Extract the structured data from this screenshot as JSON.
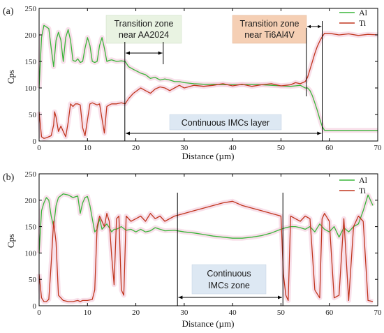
{
  "chart_data": [
    {
      "panel_label": "(a)",
      "type": "line",
      "xlabel": "Distance (µm)",
      "ylabel": "Cps",
      "xlim": [
        0,
        70
      ],
      "ylim": [
        0,
        250
      ],
      "xticks": [
        0,
        10,
        20,
        30,
        40,
        50,
        60,
        70
      ],
      "yticks": [
        0,
        50,
        100,
        150,
        200,
        250
      ],
      "grid": false,
      "legend": "top-right",
      "series": [
        {
          "name": "Al",
          "color": "#3ab53a",
          "x": [
            0,
            0.5,
            1,
            1.5,
            2,
            2.5,
            3,
            3.5,
            4,
            4.5,
            5,
            5.5,
            6,
            6.5,
            7,
            7.5,
            8,
            8.5,
            9,
            9.5,
            10,
            10.5,
            11,
            11.5,
            12,
            12.5,
            13,
            13.5,
            14,
            14.5,
            15,
            16,
            17,
            17.8,
            18.5,
            19.5,
            21,
            22,
            23,
            24,
            25,
            26,
            27,
            28,
            29,
            30,
            32,
            34,
            36,
            38,
            40,
            42,
            44,
            46,
            48,
            50,
            52,
            53,
            54,
            55,
            55.5,
            56,
            56.5,
            57,
            57.5,
            58,
            58.5,
            59,
            60,
            62,
            64,
            66,
            68,
            70
          ],
          "y": [
            100,
            195,
            218,
            215,
            212,
            175,
            140,
            190,
            205,
            190,
            150,
            195,
            210,
            190,
            152,
            150,
            155,
            148,
            150,
            175,
            195,
            180,
            150,
            148,
            150,
            180,
            195,
            175,
            150,
            152,
            153,
            150,
            151,
            150,
            140,
            135,
            128,
            125,
            118,
            120,
            115,
            117,
            115,
            112,
            112,
            110,
            108,
            107,
            107,
            106,
            106,
            106,
            107,
            106,
            105,
            104,
            103,
            104,
            105,
            100,
            100,
            95,
            85,
            72,
            58,
            42,
            28,
            20,
            20,
            20,
            20,
            20,
            20,
            20
          ]
        },
        {
          "name": "Ti",
          "color": "#c0361e",
          "x": [
            0,
            0.5,
            1,
            1.5,
            2,
            2.5,
            3,
            3.2,
            3.5,
            4,
            4.5,
            5,
            5.5,
            6,
            6.5,
            7,
            7.5,
            8,
            8.5,
            9,
            9.5,
            10,
            10.5,
            11,
            11.5,
            12,
            12.5,
            13,
            13.5,
            14,
            14.5,
            15,
            16,
            17,
            17.8,
            18.5,
            19.5,
            21,
            22,
            23,
            24,
            25,
            26,
            27,
            28,
            29,
            30,
            32,
            34,
            36,
            38,
            40,
            42,
            44,
            46,
            48,
            50,
            52,
            53,
            54,
            55,
            55.5,
            56,
            56.5,
            57,
            57.5,
            58,
            58.5,
            59,
            60,
            62,
            64,
            66,
            68,
            70
          ],
          "y": [
            55,
            8,
            5,
            6,
            8,
            10,
            30,
            55,
            45,
            18,
            28,
            18,
            8,
            35,
            70,
            65,
            70,
            70,
            68,
            25,
            10,
            40,
            70,
            72,
            70,
            68,
            70,
            42,
            15,
            65,
            68,
            70,
            70,
            72,
            70,
            80,
            90,
            100,
            95,
            90,
            98,
            102,
            100,
            95,
            100,
            105,
            100,
            105,
            103,
            105,
            108,
            104,
            107,
            103,
            106,
            108,
            104,
            106,
            110,
            108,
            112,
            120,
            135,
            150,
            165,
            178,
            188,
            196,
            203,
            203,
            200,
            202,
            199,
            201,
            200
          ]
        }
      ],
      "annotations": [
        {
          "text": [
            "Transition zone",
            "near AA2024"
          ],
          "fill": "#e9f3e2"
        },
        {
          "text": [
            "Transition zone",
            "near Ti6Al4V"
          ],
          "fill": "#f5cfb4"
        },
        {
          "text": [
            "Continuous IMCs layer"
          ],
          "fill": "#dde8f3"
        }
      ]
    },
    {
      "panel_label": "(b)",
      "type": "line",
      "xlabel": "Distance (µm)",
      "ylabel": "Cps",
      "xlim": [
        0,
        70
      ],
      "ylim": [
        0,
        250
      ],
      "xticks": [
        0,
        10,
        20,
        30,
        40,
        50,
        60,
        70
      ],
      "yticks": [
        0,
        50,
        100,
        150,
        200,
        250
      ],
      "grid": false,
      "legend": "top-right",
      "series": [
        {
          "name": "Al",
          "color": "#3ab53a",
          "x": [
            0,
            0.5,
            1,
            1.5,
            2,
            2.5,
            3,
            3.5,
            4,
            5,
            6,
            7,
            8,
            8.5,
            9,
            9.5,
            10,
            10.5,
            11,
            11.5,
            12,
            12.5,
            13,
            13.5,
            14,
            14.5,
            15,
            15.5,
            16,
            17,
            18,
            19,
            20,
            21,
            22,
            23,
            24,
            25,
            26,
            28,
            30,
            32,
            34,
            36,
            38,
            40,
            42,
            44,
            46,
            48,
            50,
            51,
            52,
            53,
            54,
            55,
            56,
            57,
            58,
            59,
            60,
            61,
            62,
            63,
            64,
            65,
            66,
            67,
            68,
            69
          ],
          "y": [
            100,
            180,
            195,
            205,
            200,
            170,
            150,
            190,
            205,
            212,
            210,
            205,
            208,
            175,
            195,
            205,
            207,
            190,
            165,
            140,
            145,
            165,
            145,
            150,
            155,
            148,
            140,
            145,
            145,
            150,
            143,
            145,
            140,
            145,
            140,
            142,
            148,
            145,
            142,
            143,
            140,
            138,
            135,
            132,
            130,
            128,
            128,
            130,
            133,
            138,
            145,
            148,
            150,
            150,
            148,
            145,
            150,
            140,
            155,
            145,
            140,
            150,
            130,
            148,
            140,
            150,
            155,
            180,
            210,
            190
          ]
        },
        {
          "name": "Ti",
          "color": "#c0361e",
          "x": [
            0,
            0.5,
            1,
            1.5,
            2,
            2.5,
            3,
            3.5,
            4,
            5,
            6,
            7,
            8,
            8.5,
            9,
            10,
            11,
            11.5,
            12,
            12.5,
            13,
            13.5,
            14,
            14.5,
            15,
            15.5,
            16,
            16.5,
            17,
            17.5,
            18,
            19,
            20,
            21,
            22,
            23,
            24,
            25,
            26,
            28,
            30,
            32,
            34,
            36,
            38,
            40,
            42,
            44,
            46,
            48,
            50,
            50.5,
            51,
            51.5,
            52,
            53,
            54,
            55,
            56,
            57,
            58,
            58.5,
            59,
            60,
            61,
            62,
            63,
            64,
            65,
            66,
            67,
            68,
            69
          ],
          "y": [
            60,
            15,
            8,
            8,
            12,
            80,
            160,
            120,
            20,
            10,
            8,
            8,
            10,
            8,
            10,
            10,
            12,
            30,
            150,
            170,
            160,
            150,
            175,
            160,
            95,
            40,
            165,
            170,
            30,
            20,
            170,
            160,
            165,
            170,
            160,
            175,
            165,
            170,
            160,
            170,
            175,
            180,
            185,
            190,
            195,
            198,
            190,
            185,
            180,
            175,
            170,
            60,
            20,
            10,
            170,
            165,
            160,
            170,
            165,
            30,
            15,
            165,
            175,
            160,
            15,
            20,
            165,
            10,
            150,
            170,
            160,
            10,
            8
          ]
        }
      ],
      "annotations": [
        {
          "text": [
            "Continuous",
            "IMCs zone"
          ],
          "fill": "#dde8f3"
        }
      ]
    }
  ]
}
